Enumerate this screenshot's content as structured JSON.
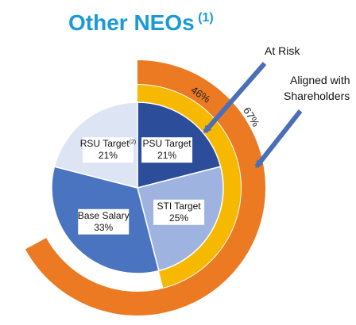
{
  "chart_data": {
    "type": "pie",
    "title": "Other NEOs",
    "title_superscript": "(1)",
    "title_color": "#1a9ad6",
    "slices": [
      {
        "label": "PSU Target",
        "superscript": "",
        "value": 21,
        "value_label": "21%",
        "color": "#2b4d9a"
      },
      {
        "label": "STI Target",
        "superscript": "",
        "value": 25,
        "value_label": "25%",
        "color": "#9fb3e0"
      },
      {
        "label": "Base Salary",
        "superscript": "",
        "value": 33,
        "value_label": "33%",
        "color": "#4a74c0"
      },
      {
        "label": "RSU Target",
        "superscript": "(2)",
        "value": 21,
        "value_label": "21%",
        "color": "#dde4f3"
      }
    ],
    "rings": [
      {
        "name": "At Risk",
        "value": 46,
        "value_label": "46%",
        "color": "#f7b800",
        "covers": [
          "PSU Target",
          "STI Target"
        ]
      },
      {
        "name": "Aligned with Shareholders",
        "value": 67,
        "value_label": "67%",
        "color": "#ec7a23",
        "covers": [
          "PSU Target",
          "STI Target",
          "RSU Target"
        ]
      }
    ],
    "annotations": [
      {
        "text": "At Risk",
        "points_to": "At Risk"
      },
      {
        "text": "Aligned with Shareholders",
        "lines": [
          "Aligned with",
          "Shareholders"
        ],
        "points_to": "Aligned with Shareholders"
      }
    ],
    "arrow_color": "#4a6fb8"
  }
}
